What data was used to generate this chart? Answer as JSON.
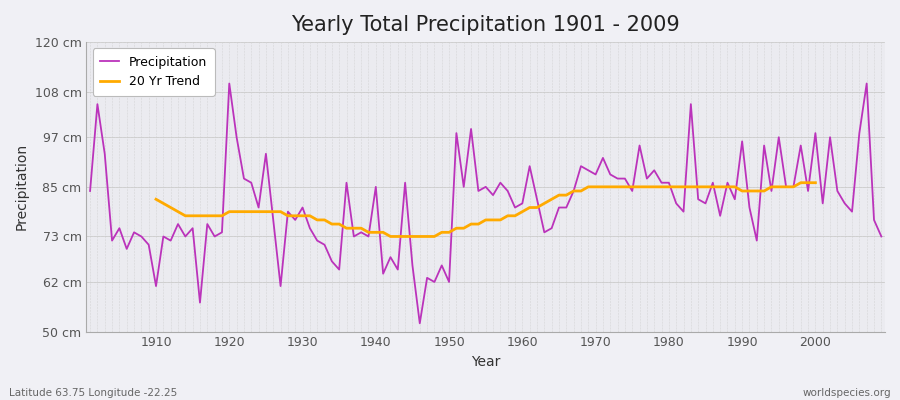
{
  "title": "Yearly Total Precipitation 1901 - 2009",
  "xlabel": "Year",
  "ylabel": "Precipitation",
  "subtitle_left": "Latitude 63.75 Longitude -22.25",
  "subtitle_right": "worldspecies.org",
  "years": [
    1901,
    1902,
    1903,
    1904,
    1905,
    1906,
    1907,
    1908,
    1909,
    1910,
    1911,
    1912,
    1913,
    1914,
    1915,
    1916,
    1917,
    1918,
    1919,
    1920,
    1921,
    1922,
    1923,
    1924,
    1925,
    1926,
    1927,
    1928,
    1929,
    1930,
    1931,
    1932,
    1933,
    1934,
    1935,
    1936,
    1937,
    1938,
    1939,
    1940,
    1941,
    1942,
    1943,
    1944,
    1945,
    1946,
    1947,
    1948,
    1949,
    1950,
    1951,
    1952,
    1953,
    1954,
    1955,
    1956,
    1957,
    1958,
    1959,
    1960,
    1961,
    1962,
    1963,
    1964,
    1965,
    1966,
    1967,
    1968,
    1969,
    1970,
    1971,
    1972,
    1973,
    1974,
    1975,
    1976,
    1977,
    1978,
    1979,
    1980,
    1981,
    1982,
    1983,
    1984,
    1985,
    1986,
    1987,
    1988,
    1989,
    1990,
    1991,
    1992,
    1993,
    1994,
    1995,
    1996,
    1997,
    1998,
    1999,
    2000,
    2001,
    2002,
    2003,
    2004,
    2005,
    2006,
    2007,
    2008,
    2009
  ],
  "precipitation": [
    84,
    105,
    93,
    72,
    75,
    70,
    74,
    73,
    71,
    61,
    73,
    72,
    76,
    73,
    75,
    57,
    76,
    73,
    74,
    110,
    97,
    87,
    86,
    80,
    93,
    77,
    61,
    79,
    77,
    80,
    75,
    72,
    71,
    67,
    65,
    86,
    73,
    74,
    73,
    85,
    64,
    68,
    65,
    86,
    66,
    52,
    63,
    62,
    66,
    62,
    98,
    85,
    99,
    84,
    85,
    83,
    86,
    84,
    80,
    81,
    90,
    82,
    74,
    75,
    80,
    80,
    84,
    90,
    89,
    88,
    92,
    88,
    87,
    87,
    84,
    95,
    87,
    89,
    86,
    86,
    81,
    79,
    105,
    82,
    81,
    86,
    78,
    86,
    82,
    96,
    80,
    72,
    95,
    84,
    97,
    85,
    85,
    95,
    84,
    98,
    81,
    97,
    84,
    81,
    79,
    98,
    110,
    77,
    73
  ],
  "trend": [
    null,
    null,
    null,
    null,
    null,
    null,
    null,
    null,
    null,
    82,
    81,
    80,
    79,
    78,
    78,
    78,
    78,
    78,
    78,
    79,
    79,
    79,
    79,
    79,
    79,
    79,
    79,
    78,
    78,
    78,
    78,
    77,
    77,
    76,
    76,
    75,
    75,
    75,
    74,
    74,
    74,
    73,
    73,
    73,
    73,
    73,
    73,
    73,
    74,
    74,
    75,
    75,
    76,
    76,
    77,
    77,
    77,
    78,
    78,
    79,
    80,
    80,
    81,
    82,
    83,
    83,
    84,
    84,
    85,
    85,
    85,
    85,
    85,
    85,
    85,
    85,
    85,
    85,
    85,
    85,
    85,
    85,
    85,
    85,
    85,
    85,
    85,
    85,
    85,
    84,
    84,
    84,
    84,
    85,
    85,
    85,
    85,
    86,
    86,
    86,
    null,
    null,
    null,
    null,
    null,
    null,
    null,
    null,
    null
  ],
  "precip_color": "#bb33bb",
  "trend_color": "#ffaa00",
  "background_color": "#f0f0f5",
  "plot_bg_color": "#ebebf0",
  "ylim": [
    50,
    120
  ],
  "yticks": [
    50,
    62,
    73,
    85,
    97,
    108,
    120
  ],
  "ytick_labels": [
    "50 cm",
    "62 cm",
    "73 cm",
    "85 cm",
    "97 cm",
    "108 cm",
    "120 cm"
  ],
  "title_fontsize": 15,
  "legend_fontsize": 9,
  "axis_fontsize": 9
}
